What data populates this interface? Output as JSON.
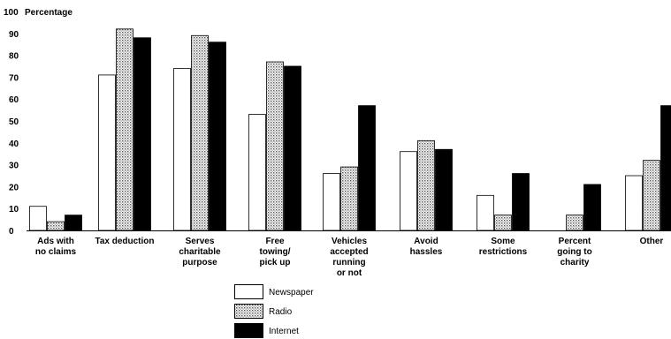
{
  "chart_data": {
    "type": "bar",
    "ylabel": "Percentage",
    "ylim": [
      0,
      100
    ],
    "yticks": [
      0,
      10,
      20,
      30,
      40,
      50,
      60,
      70,
      80,
      90,
      100
    ],
    "grid": false,
    "legend_position": "bottom-center",
    "categories": [
      [
        "Ads with",
        "no claims"
      ],
      [
        "Tax deduction"
      ],
      [
        "Serves",
        "charitable",
        "purpose"
      ],
      [
        "Free",
        "towing/",
        "pick up"
      ],
      [
        "Vehicles",
        "accepted",
        "running",
        "or not"
      ],
      [
        "Avoid",
        "hassles"
      ],
      [
        "Some",
        "restrictions"
      ],
      [
        "Percent",
        "going to",
        "charity"
      ],
      [
        "Other"
      ]
    ],
    "series": [
      {
        "name": "Newspaper",
        "fill": "white",
        "values": [
          11,
          71,
          74,
          53,
          26,
          36,
          16,
          0,
          25
        ]
      },
      {
        "name": "Radio",
        "fill": "dotted",
        "values": [
          4,
          92,
          89,
          77,
          29,
          41,
          7,
          7,
          32
        ]
      },
      {
        "name": "Internet",
        "fill": "black",
        "values": [
          7,
          88,
          86,
          75,
          57,
          37,
          26,
          21,
          57
        ]
      }
    ]
  }
}
